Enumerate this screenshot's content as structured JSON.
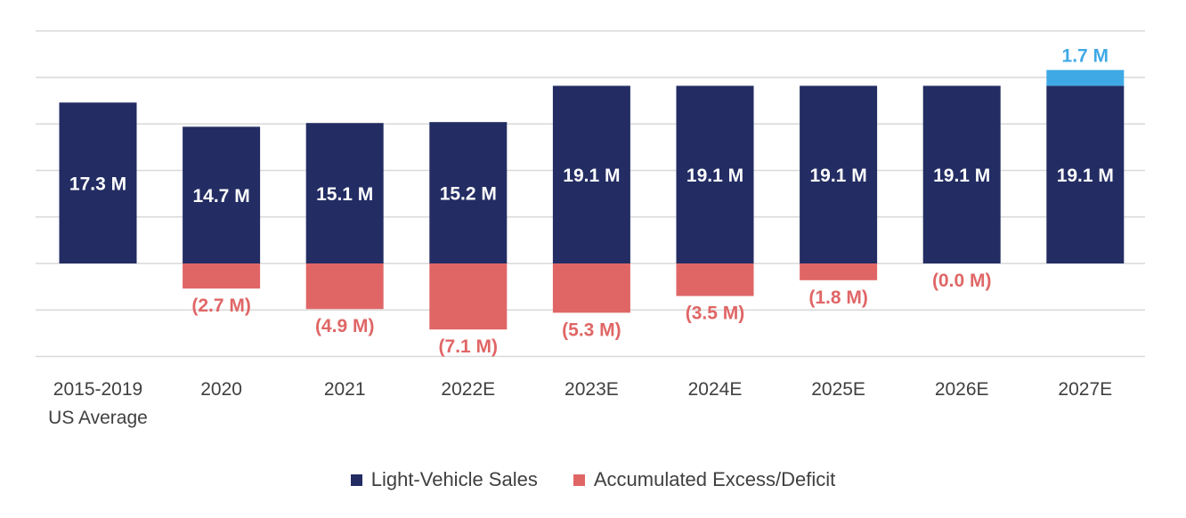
{
  "chart_data": {
    "type": "bar",
    "stacked": true,
    "categories": [
      [
        "2015-2019",
        "US Average"
      ],
      [
        "2020"
      ],
      [
        "2021"
      ],
      [
        "2022E"
      ],
      [
        "2023E"
      ],
      [
        "2024E"
      ],
      [
        "2025E"
      ],
      [
        "2026E"
      ],
      [
        "2027E"
      ]
    ],
    "series": [
      {
        "name": "Light-Vehicle Sales",
        "color": "#232d63",
        "values": [
          17.3,
          14.7,
          15.1,
          15.2,
          19.1,
          19.1,
          19.1,
          19.1,
          19.1
        ],
        "labels": [
          "17.3 M",
          "14.7 M",
          "15.1 M",
          "15.2 M",
          "19.1 M",
          "19.1 M",
          "19.1 M",
          "19.1 M",
          "19.1 M"
        ]
      },
      {
        "name": "Accumulated Excess/Deficit",
        "color": "#e06666",
        "values": [
          null,
          -2.7,
          -4.9,
          -7.1,
          -5.3,
          -3.5,
          -1.8,
          -0.0,
          null
        ],
        "labels": [
          null,
          "(2.7 M)",
          "(4.9 M)",
          "(7.1 M)",
          "(5.3 M)",
          "(3.5 M)",
          "(1.8 M)",
          "(0.0 M)",
          null
        ]
      },
      {
        "color": "#3fa9e6",
        "values": [
          null,
          null,
          null,
          null,
          null,
          null,
          null,
          null,
          1.7
        ],
        "labels": [
          null,
          null,
          null,
          null,
          null,
          null,
          null,
          null,
          "1.7 M"
        ]
      }
    ],
    "ylim": [
      -10,
      25
    ],
    "gridlines": true,
    "legend_position": "bottom"
  }
}
